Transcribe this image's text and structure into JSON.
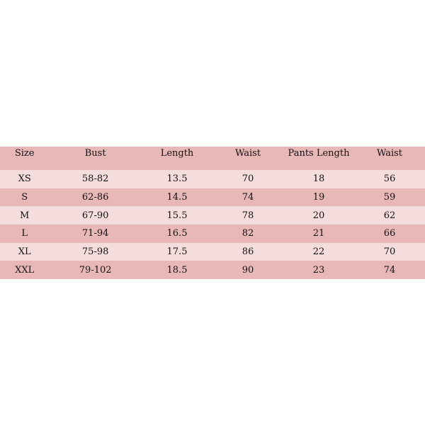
{
  "colors": {
    "dark_row": "#e8b7b7",
    "light_row": "#f5dddd"
  },
  "table": {
    "headers": [
      "Size",
      "Bust",
      "Length",
      "Waist",
      "Pants Length",
      "Waist"
    ],
    "rows": [
      [
        "XS",
        "58-82",
        "13.5",
        "70",
        "18",
        "56"
      ],
      [
        "S",
        "62-86",
        "14.5",
        "74",
        "19",
        "59"
      ],
      [
        "M",
        "67-90",
        "15.5",
        "78",
        "20",
        "62"
      ],
      [
        "L",
        "71-94",
        "16.5",
        "82",
        "21",
        "66"
      ],
      [
        "XL",
        "75-98",
        "17.5",
        "86",
        "22",
        "70"
      ],
      [
        "XXL",
        "79-102",
        "18.5",
        "90",
        "23",
        "74"
      ]
    ]
  }
}
